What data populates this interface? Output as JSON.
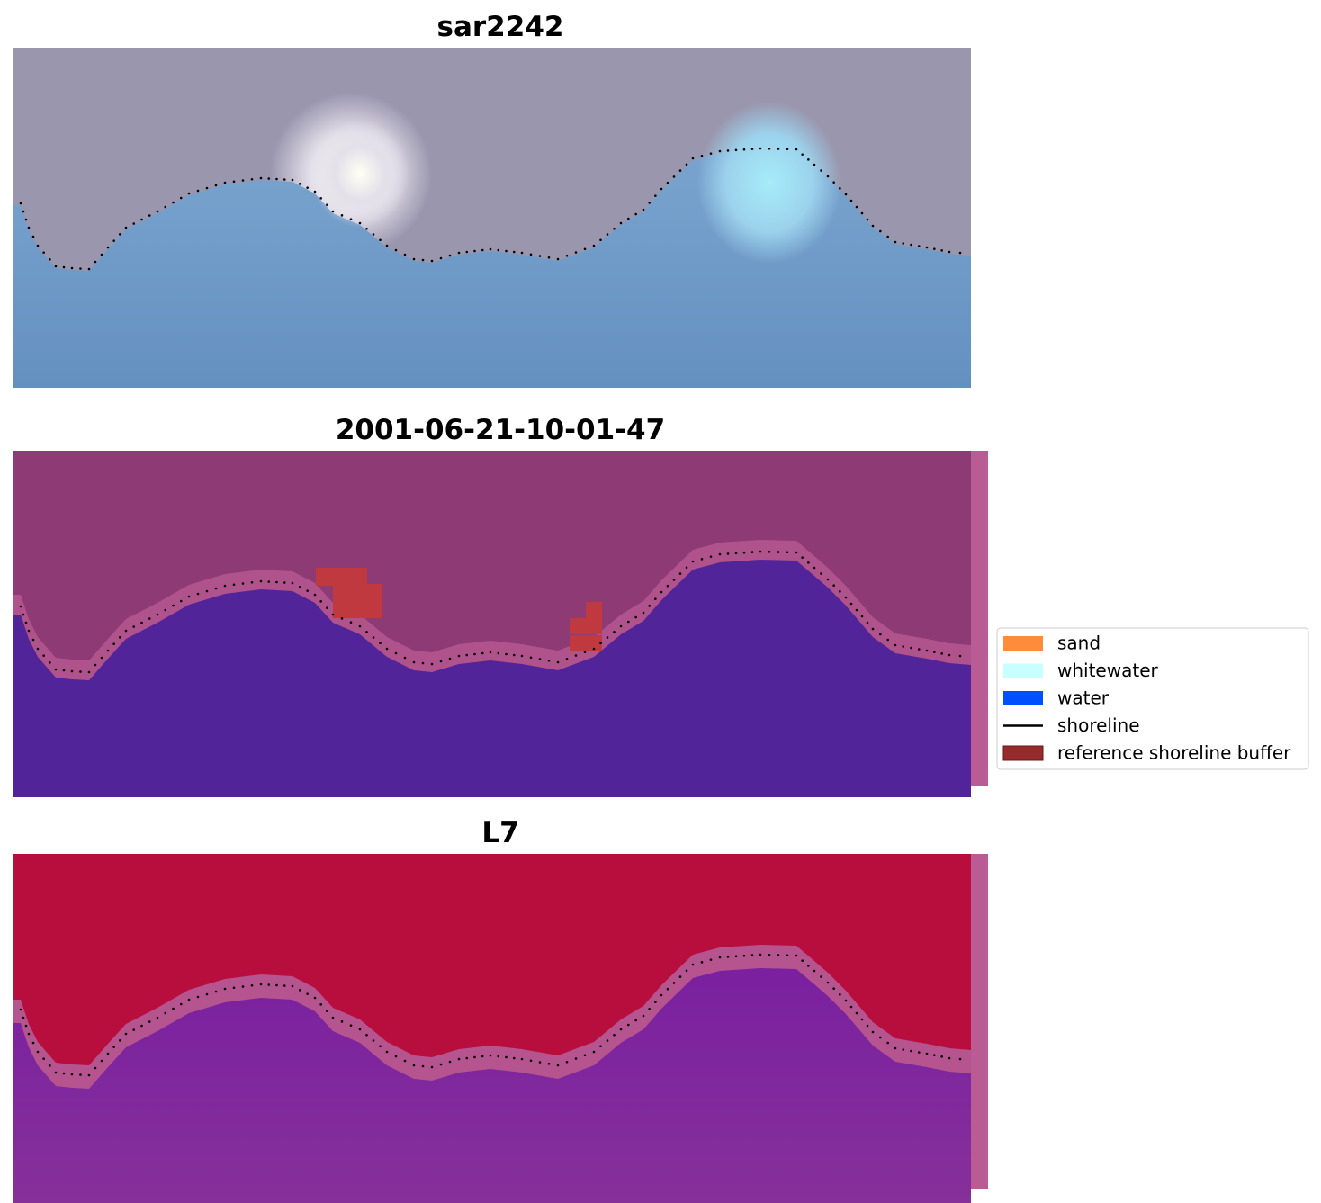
{
  "panels": [
    {
      "title": "sar2242"
    },
    {
      "title": "2001-06-21-10-01-47"
    },
    {
      "title": "L7"
    }
  ],
  "legend": {
    "items": [
      {
        "label": "sand",
        "color": "#fe8c3a",
        "kind": "patch"
      },
      {
        "label": "whitewater",
        "color": "#c8ffff",
        "kind": "patch"
      },
      {
        "label": "water",
        "color": "#0050ff",
        "kind": "patch"
      },
      {
        "label": "shoreline",
        "color": "#000000",
        "kind": "line"
      },
      {
        "label": "reference shoreline buffer",
        "color": "#962b2b",
        "kind": "patch"
      }
    ]
  }
}
